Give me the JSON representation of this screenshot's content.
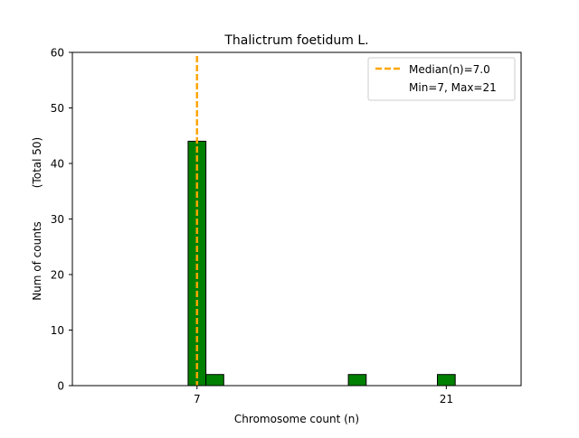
{
  "chart_data": {
    "type": "bar",
    "title": "Thalictrum foetidum L.",
    "xlabel": "Chromosome count (n)",
    "ylabel": "Num of counts",
    "ylabel_note": "(Total 50)",
    "xlim": [
      0,
      25.2
    ],
    "ylim": [
      0,
      60
    ],
    "x_ticks": [
      7,
      21
    ],
    "y_ticks": [
      0,
      10,
      20,
      30,
      40,
      50,
      60
    ],
    "bin_width": 1,
    "bars": [
      {
        "x_start": 6.5,
        "x_end": 7.5,
        "value": 44
      },
      {
        "x_start": 7.5,
        "x_end": 8.5,
        "value": 2
      },
      {
        "x_start": 15.5,
        "x_end": 16.5,
        "value": 2
      },
      {
        "x_start": 20.5,
        "x_end": 21.5,
        "value": 2
      }
    ],
    "median": 7.0,
    "bar_color": "#008000",
    "bar_edge_color": "#000000",
    "median_color": "#FFA500",
    "legend_position": "top-right",
    "legend": {
      "median_label": "Median(n)=7.0",
      "minmax_label": "Min=7, Max=21"
    },
    "grid": false
  }
}
